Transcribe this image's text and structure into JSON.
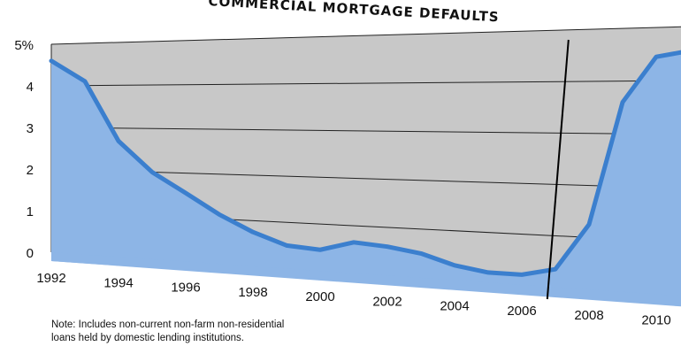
{
  "chart_data": {
    "type": "area",
    "title": "COMMERCIAL MORTGAGE DEFAULTS",
    "x": [
      1992,
      1993,
      1994,
      1995,
      1996,
      1997,
      1998,
      1999,
      2000,
      2001,
      2002,
      2003,
      2004,
      2005,
      2006,
      2007,
      2008,
      2009,
      2010,
      2011
    ],
    "values": [
      4.6,
      4.1,
      2.7,
      2.0,
      1.55,
      1.1,
      0.75,
      0.5,
      0.45,
      0.65,
      0.6,
      0.5,
      0.3,
      0.2,
      0.2,
      0.35,
      1.25,
      3.6,
      4.45,
      4.55
    ],
    "x_tick_labels": [
      "1992",
      "1994",
      "1996",
      "1998",
      "2000",
      "2002",
      "2004",
      "2006",
      "2008",
      "2010"
    ],
    "y_tick_labels": [
      "0",
      "1",
      "2",
      "3",
      "4",
      "5%"
    ],
    "ylim": [
      0,
      5
    ],
    "xlim": [
      1992,
      2011
    ],
    "grid": true,
    "colors": {
      "area": "#8db5e6",
      "line": "#3b7fce",
      "wall": "#c8c8c8",
      "grid": "#222222"
    }
  },
  "note": {
    "line1": "Note: Includes non-current non-farm non-residential",
    "line2": "loans held by domestic lending institutions."
  }
}
